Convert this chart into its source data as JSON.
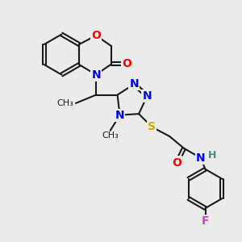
{
  "background_color": "#ebebeb",
  "bond_color": "#1a1a1a",
  "atom_colors": {
    "N": "#0000ff",
    "O": "#ff0000",
    "S": "#ccaa00",
    "F": "#cc44cc",
    "H": "#448888"
  },
  "figsize": [
    3.0,
    3.0
  ],
  "dpi": 100,
  "lw": 1.5,
  "fs": 10
}
